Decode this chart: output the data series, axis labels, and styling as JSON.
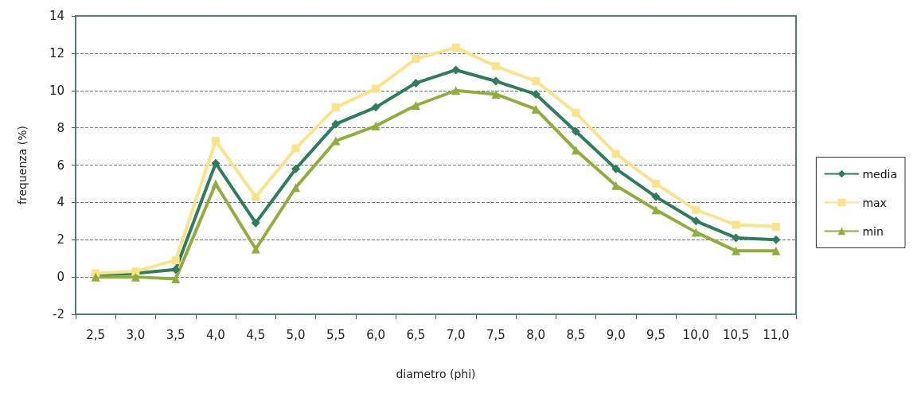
{
  "chart_data": {
    "type": "line",
    "xlabel": "diametro (phi)",
    "ylabel": "frequenza (%)",
    "categories": [
      "2,5",
      "3,0",
      "3,5",
      "4,0",
      "4,5",
      "5,0",
      "5,5",
      "6,0",
      "6,5",
      "7,0",
      "7,5",
      "8,0",
      "8,5",
      "9,0",
      "9,5",
      "10,0",
      "10,5",
      "11,0"
    ],
    "series": [
      {
        "name": "media",
        "color": "#2e7d5b",
        "marker": "diamond",
        "values": [
          0.1,
          0.2,
          0.4,
          6.1,
          2.9,
          5.8,
          8.2,
          9.1,
          10.4,
          11.1,
          10.5,
          9.8,
          7.8,
          5.8,
          4.3,
          3.0,
          2.1,
          2.0
        ]
      },
      {
        "name": "max",
        "color": "#fce38a",
        "marker": "square",
        "values": [
          0.2,
          0.3,
          0.9,
          7.3,
          4.3,
          6.9,
          9.1,
          10.1,
          11.7,
          12.3,
          11.3,
          10.5,
          8.8,
          6.6,
          5.0,
          3.6,
          2.8,
          2.7
        ]
      },
      {
        "name": "min",
        "color": "#8fae3c",
        "marker": "triangle",
        "values": [
          0,
          0,
          -0.1,
          5.0,
          1.5,
          4.8,
          7.3,
          8.1,
          9.2,
          10.0,
          9.8,
          9.0,
          6.8,
          4.9,
          3.6,
          2.4,
          1.4,
          1.4
        ]
      }
    ],
    "ylim": [
      -2,
      14
    ],
    "yticks": [
      -2,
      0,
      2,
      4,
      6,
      8,
      10,
      12,
      14
    ],
    "grid": "y",
    "legend": "right",
    "line_style": "solid"
  }
}
